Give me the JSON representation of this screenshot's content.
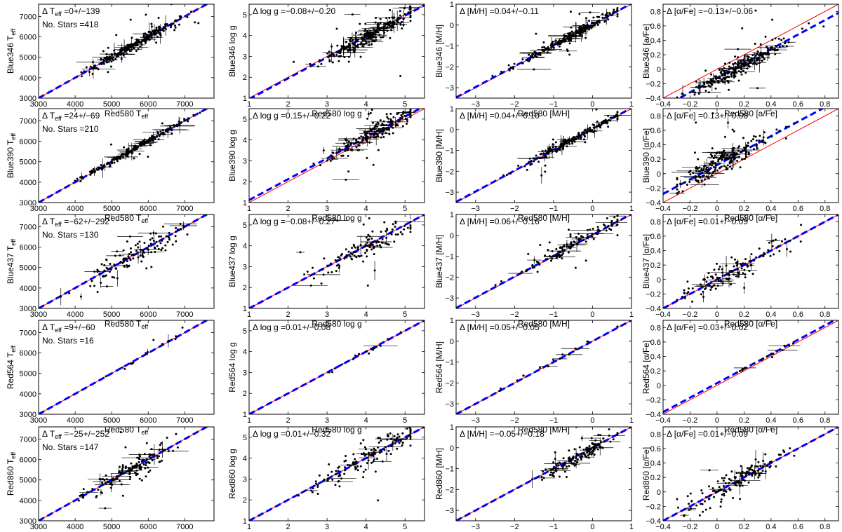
{
  "figure": {
    "rows": [
      "Blue346",
      "Blue390",
      "Blue437",
      "Red564",
      "Red860"
    ],
    "reference": "Red580"
  },
  "chart_data": [
    {
      "type": "scatter",
      "row": 0,
      "col": 0,
      "param": "teff",
      "xlabel": "Red580 T",
      "xlabel_sub": "eff",
      "ylabel": "Blue346 T",
      "ylabel_sub": "eff",
      "xlim": [
        3000,
        7800
      ],
      "ylim": [
        3000,
        7600
      ],
      "xticks": [
        3000,
        4000,
        5000,
        6000,
        7000
      ],
      "yticks": [
        3000,
        4000,
        5000,
        6000,
        7000
      ],
      "stat_prefix": "Δ T",
      "stat_sub": "eff",
      "stat_value": " =0+/−139",
      "nstars": "No. Stars =418",
      "offset": 0,
      "spread": 139,
      "n": 418,
      "xc": [
        5600,
        650
      ],
      "blue_line": [
        0,
        0
      ]
    },
    {
      "type": "scatter",
      "row": 0,
      "col": 1,
      "param": "logg",
      "xlabel": "Red580 log g",
      "ylabel": "Blue346 log g",
      "xlim": [
        1,
        5.5
      ],
      "ylim": [
        1,
        5.5
      ],
      "xticks": [
        1,
        2,
        3,
        4,
        5
      ],
      "yticks": [
        1,
        2,
        3,
        4,
        5
      ],
      "stat_text": "Δ log g =−0.08+/−0.20",
      "offset": -0.08,
      "spread": 0.2,
      "n": 418,
      "xc": [
        4.1,
        0.6
      ],
      "blue_line": [
        -0.05,
        0
      ]
    },
    {
      "type": "scatter",
      "row": 0,
      "col": 2,
      "param": "mh",
      "xlabel": "Red580 [M/H]",
      "ylabel": "Blue346 [M/H]",
      "xlim": [
        -3.5,
        1
      ],
      "ylim": [
        -3.5,
        1
      ],
      "xticks": [
        -3,
        -2,
        -1,
        0,
        1
      ],
      "yticks": [
        -3,
        -2,
        -1,
        0,
        1
      ],
      "stat_text": "Δ [M/H] =0.04+/−0.11",
      "offset": 0.04,
      "spread": 0.11,
      "n": 418,
      "xc": [
        -0.6,
        0.6
      ],
      "blue_line": [
        0.03,
        0
      ]
    },
    {
      "type": "scatter",
      "row": 0,
      "col": 3,
      "param": "afe",
      "xlabel": "Red580 [a/Fe]",
      "ylabel": "Blue346 [a/Fe]",
      "xlim": [
        -0.4,
        0.9
      ],
      "ylim": [
        -0.4,
        0.9
      ],
      "xticks": [
        -0.4,
        -0.2,
        0,
        0.2,
        0.4,
        0.6,
        0.8
      ],
      "yticks": [
        -0.4,
        -0.2,
        0,
        0.2,
        0.4,
        0.6,
        0.8
      ],
      "stat_text": "Δ [α/Fe] =−0.13+/−0.06",
      "offset": -0.13,
      "spread": 0.06,
      "n": 418,
      "xc": [
        0.15,
        0.18
      ],
      "blue_line": [
        -0.12,
        0
      ]
    },
    {
      "type": "scatter",
      "row": 1,
      "col": 0,
      "param": "teff",
      "xlabel": "Red580 T",
      "xlabel_sub": "eff",
      "ylabel": "Blue390 T",
      "ylabel_sub": "eff",
      "xlim": [
        3000,
        7800
      ],
      "ylim": [
        3000,
        7600
      ],
      "xticks": [
        3000,
        4000,
        5000,
        6000,
        7000
      ],
      "yticks": [
        3000,
        4000,
        5000,
        6000,
        7000
      ],
      "stat_prefix": "Δ T",
      "stat_sub": "eff",
      "stat_value": " =24+/−69",
      "nstars": "No. Stars =210",
      "offset": 24,
      "spread": 69,
      "n": 210,
      "xc": [
        5600,
        650
      ],
      "blue_line": [
        0,
        0
      ]
    },
    {
      "type": "scatter",
      "row": 1,
      "col": 1,
      "param": "logg",
      "xlabel": "Red580 log g",
      "ylabel": "Blue390 log g",
      "xlim": [
        1,
        5.5
      ],
      "ylim": [
        1,
        5.5
      ],
      "xticks": [
        1,
        2,
        3,
        4,
        5
      ],
      "yticks": [
        1,
        2,
        3,
        4,
        5
      ],
      "stat_text": "Δ log g =0.15+/−0.22",
      "offset": 0.15,
      "spread": 0.22,
      "n": 210,
      "xc": [
        4.2,
        0.6
      ],
      "blue_line": [
        0.12,
        0
      ]
    },
    {
      "type": "scatter",
      "row": 1,
      "col": 2,
      "param": "mh",
      "xlabel": "Red580 [M/H]",
      "ylabel": "Blue390 [M/H]",
      "xlim": [
        -3.5,
        1
      ],
      "ylim": [
        -3.5,
        1
      ],
      "xticks": [
        -3,
        -2,
        -1,
        0,
        1
      ],
      "yticks": [
        -3,
        -2,
        -1,
        0,
        1
      ],
      "stat_text": "Δ [M/H] =0.04+/−0.10",
      "offset": 0.04,
      "spread": 0.1,
      "n": 210,
      "xc": [
        -0.5,
        0.6
      ],
      "blue_line": [
        0.03,
        0
      ]
    },
    {
      "type": "scatter",
      "row": 1,
      "col": 3,
      "param": "afe",
      "xlabel": "Red580 [α/Fe]",
      "ylabel": "Blue390 [α/Fe]",
      "xlim": [
        -0.4,
        0.9
      ],
      "ylim": [
        -0.4,
        0.9
      ],
      "xticks": [
        -0.4,
        -0.2,
        0,
        0.2,
        0.4,
        0.6,
        0.8
      ],
      "yticks": [
        -0.4,
        -0.2,
        0,
        0.2,
        0.4,
        0.6,
        0.8
      ],
      "stat_text": "Δ [α/Fe] =0.13+/−0.08",
      "offset": 0.13,
      "spread": 0.08,
      "n": 210,
      "xc": [
        0.05,
        0.18
      ],
      "blue_line": [
        0.12,
        0
      ]
    },
    {
      "type": "scatter",
      "row": 2,
      "col": 0,
      "param": "teff",
      "xlabel": "Red580 T",
      "xlabel_sub": "eff",
      "ylabel": "Blue437 T",
      "ylabel_sub": "eff",
      "xlim": [
        3000,
        7800
      ],
      "ylim": [
        3000,
        7600
      ],
      "xticks": [
        3000,
        4000,
        5000,
        6000,
        7000
      ],
      "yticks": [
        3000,
        4000,
        5000,
        6000,
        7000
      ],
      "stat_prefix": "Δ T",
      "stat_sub": "eff",
      "stat_value": " =−62+/−292",
      "nstars": "No. Stars =130",
      "offset": -62,
      "spread": 292,
      "n": 130,
      "xc": [
        5600,
        650
      ],
      "blue_line": [
        0,
        0
      ]
    },
    {
      "type": "scatter",
      "row": 2,
      "col": 1,
      "param": "logg",
      "xlabel": "Red580 log g",
      "ylabel": "Blue437 log g",
      "xlim": [
        1,
        5.5
      ],
      "ylim": [
        1,
        5.5
      ],
      "xticks": [
        1,
        2,
        3,
        4,
        5
      ],
      "yticks": [
        1,
        2,
        3,
        4,
        5
      ],
      "stat_text": "Δ log g =−0.08+/−0.27",
      "offset": -0.08,
      "spread": 0.27,
      "n": 130,
      "xc": [
        4.0,
        0.7
      ],
      "blue_line": [
        0,
        0
      ]
    },
    {
      "type": "scatter",
      "row": 2,
      "col": 2,
      "param": "mh",
      "xlabel": "Red580 [M/H]",
      "ylabel": "Blue437 [M/H]",
      "xlim": [
        -3.5,
        1
      ],
      "ylim": [
        -3.5,
        1
      ],
      "xticks": [
        -3,
        -2,
        -1,
        0,
        1
      ],
      "yticks": [
        -3,
        -2,
        -1,
        0,
        1
      ],
      "stat_text": "Δ [M/H] =0.06+/−0.16",
      "offset": 0.06,
      "spread": 0.16,
      "n": 130,
      "xc": [
        -0.4,
        0.6
      ],
      "blue_line": [
        0.02,
        0
      ]
    },
    {
      "type": "scatter",
      "row": 2,
      "col": 3,
      "param": "afe",
      "xlabel": "Red580 [α/Fe]",
      "ylabel": "Blue437 [α/Fe]",
      "xlim": [
        -0.4,
        0.9
      ],
      "ylim": [
        -0.4,
        0.9
      ],
      "xticks": [
        -0.4,
        -0.2,
        0,
        0.2,
        0.4,
        0.6,
        0.8
      ],
      "yticks": [
        -0.4,
        -0.2,
        0,
        0.2,
        0.4,
        0.6,
        0.8
      ],
      "stat_text": "Δ [α/Fe] =0.01+/−0.09",
      "offset": 0.01,
      "spread": 0.09,
      "n": 130,
      "xc": [
        0.1,
        0.2
      ],
      "blue_line": [
        0,
        0
      ]
    },
    {
      "type": "scatter",
      "row": 3,
      "col": 0,
      "param": "teff",
      "xlabel": "Red580 T",
      "xlabel_sub": "eff",
      "ylabel": "Red564 T",
      "ylabel_sub": "eff",
      "xlim": [
        3000,
        7800
      ],
      "ylim": [
        3000,
        7600
      ],
      "xticks": [
        3000,
        4000,
        5000,
        6000,
        7000
      ],
      "yticks": [
        3000,
        4000,
        5000,
        6000,
        7000
      ],
      "stat_prefix": "Δ T",
      "stat_sub": "eff",
      "stat_value": " =9+/−60",
      "nstars": "No. Stars =16",
      "offset": 9,
      "spread": 60,
      "n": 16,
      "xc": [
        5900,
        500
      ],
      "blue_line": [
        0,
        0
      ]
    },
    {
      "type": "scatter",
      "row": 3,
      "col": 1,
      "param": "logg",
      "xlabel": "Red580 log g",
      "ylabel": "Red564 log g",
      "xlim": [
        1,
        5.5
      ],
      "ylim": [
        1,
        5.5
      ],
      "xticks": [
        1,
        2,
        3,
        4,
        5
      ],
      "yticks": [
        1,
        2,
        3,
        4,
        5
      ],
      "stat_text": "Δ log g =0.01+/−0.08",
      "offset": 0.01,
      "spread": 0.08,
      "n": 16,
      "xc": [
        4.0,
        0.6
      ],
      "blue_line": [
        0,
        0
      ]
    },
    {
      "type": "scatter",
      "row": 3,
      "col": 2,
      "param": "mh",
      "xlabel": "Red580 [M/H]",
      "ylabel": "Red564 [M/H]",
      "xlim": [
        -3.5,
        1
      ],
      "ylim": [
        -3.5,
        1
      ],
      "xticks": [
        -3,
        -2,
        -1,
        0,
        1
      ],
      "yticks": [
        -3,
        -2,
        -1,
        0,
        1
      ],
      "stat_text": "Δ [M/H] =0.05+/−0.05",
      "offset": 0.05,
      "spread": 0.05,
      "n": 16,
      "xc": [
        -1.2,
        1.0
      ],
      "blue_line": [
        0,
        0
      ]
    },
    {
      "type": "scatter",
      "row": 3,
      "col": 3,
      "param": "afe",
      "xlabel": "Red580 [α/Fe]",
      "ylabel": "Red564 [α/Fe]",
      "xlim": [
        -0.4,
        0.9
      ],
      "ylim": [
        -0.4,
        0.9
      ],
      "xticks": [
        -0.4,
        -0.2,
        0,
        0.2,
        0.4,
        0.6,
        0.8
      ],
      "yticks": [
        -0.4,
        -0.2,
        0,
        0.2,
        0.4,
        0.6,
        0.8
      ],
      "stat_text": "Δ [α/Fe] =0.03+/−0.02",
      "offset": 0.03,
      "spread": 0.02,
      "n": 16,
      "xc": [
        0.3,
        0.15
      ],
      "blue_line": [
        0.03,
        0
      ]
    },
    {
      "type": "scatter",
      "row": 4,
      "col": 0,
      "param": "teff",
      "xlabel": "Red580 T",
      "xlabel_sub": "eff",
      "ylabel": "Red860 T",
      "ylabel_sub": "eff",
      "xlim": [
        3000,
        7800
      ],
      "ylim": [
        3000,
        7600
      ],
      "xticks": [
        3000,
        4000,
        5000,
        6000,
        7000
      ],
      "yticks": [
        3000,
        4000,
        5000,
        6000,
        7000
      ],
      "stat_prefix": "Δ T",
      "stat_sub": "eff",
      "stat_value": " =−25+/−252",
      "nstars": "No. Stars =147",
      "offset": -25,
      "spread": 252,
      "n": 147,
      "xc": [
        5500,
        650
      ],
      "blue_line": [
        0,
        0
      ]
    },
    {
      "type": "scatter",
      "row": 4,
      "col": 1,
      "param": "logg",
      "xlabel": "Red580 log g",
      "ylabel": "Red860 log g",
      "xlim": [
        1,
        5.5
      ],
      "ylim": [
        1,
        5.5
      ],
      "xticks": [
        1,
        2,
        3,
        4,
        5
      ],
      "yticks": [
        1,
        2,
        3,
        4,
        5
      ],
      "stat_text": "Δ log g =0.01+/−0.32",
      "offset": 0.01,
      "spread": 0.32,
      "n": 147,
      "xc": [
        4.0,
        0.8
      ],
      "blue_line": [
        0,
        0
      ]
    },
    {
      "type": "scatter",
      "row": 4,
      "col": 2,
      "param": "mh",
      "xlabel": "Red580 [M/H]",
      "ylabel": "Red860 [M/H]",
      "xlim": [
        -3.5,
        1
      ],
      "ylim": [
        -3.5,
        1
      ],
      "xticks": [
        -3,
        -2,
        -1,
        0,
        1
      ],
      "yticks": [
        -3,
        -2,
        -1,
        0,
        1
      ],
      "stat_text": "Δ [M/H] =−0.05+/−0.18",
      "offset": -0.05,
      "spread": 0.18,
      "n": 147,
      "xc": [
        -0.3,
        0.5
      ],
      "blue_line": [
        0,
        0
      ]
    },
    {
      "type": "scatter",
      "row": 4,
      "col": 3,
      "param": "afe",
      "xlabel": "Red580 [α/Fe]",
      "ylabel": "Red860 [α/Fe]",
      "xlim": [
        -0.4,
        0.9
      ],
      "ylim": [
        -0.4,
        0.9
      ],
      "xticks": [
        -0.4,
        -0.2,
        0,
        0.2,
        0.4,
        0.6,
        0.8
      ],
      "yticks": [
        -0.4,
        -0.2,
        0,
        0.2,
        0.4,
        0.6,
        0.8
      ],
      "stat_text": "Δ [α/Fe] =0.01+/−0.09",
      "offset": 0.01,
      "spread": 0.09,
      "n": 147,
      "xc": [
        0.15,
        0.18
      ],
      "blue_line": [
        0,
        0
      ]
    }
  ],
  "colors": {
    "identity_line": "#ff0000",
    "fit_line": "#0000ff",
    "points": "#000000",
    "axes": "#000000"
  }
}
